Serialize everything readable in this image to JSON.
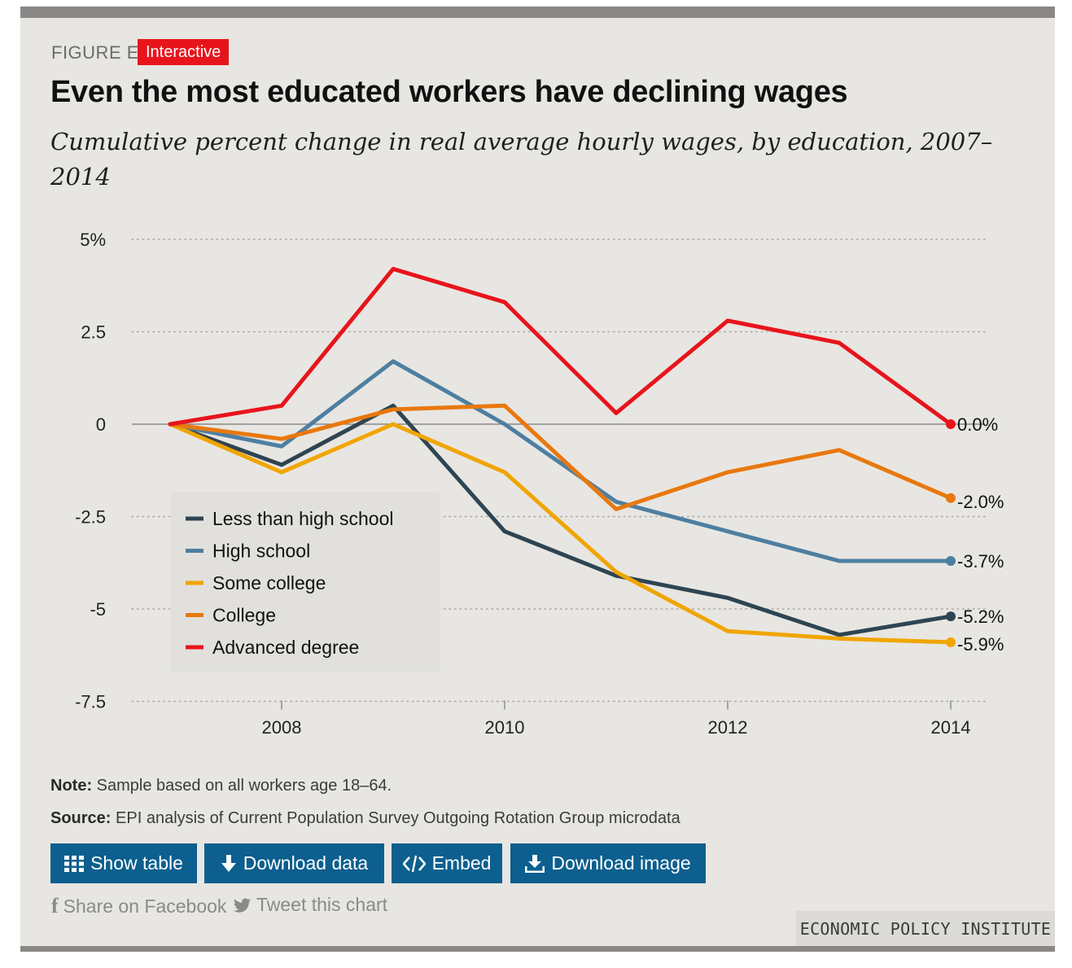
{
  "header": {
    "figure_label": "FIGURE E",
    "badge": "Interactive",
    "title": "Even the most educated workers have declining wages",
    "subtitle": "Cumulative percent change in real average hourly wages, by education, 2007–2014"
  },
  "footer": {
    "note_label": "Note:",
    "note_text": " Sample based on all workers age 18–64.",
    "source_label": "Source:",
    "source_text": " EPI analysis of Current Population Survey Outgoing Rotation Group microdata",
    "buttons": {
      "show_table": "Show table",
      "download_data": "Download data",
      "embed": "Embed",
      "download_image": "Download image"
    },
    "share_facebook": "Share on Facebook",
    "tweet": "Tweet this chart",
    "brand": "ECONOMIC POLICY INSTITUTE"
  },
  "icons": {
    "show_table": "grid-icon",
    "download_data": "download-arrow-icon",
    "embed": "code-icon",
    "download_image": "download-tray-icon",
    "facebook": "facebook-icon",
    "twitter": "twitter-icon"
  },
  "chart_data": {
    "type": "line",
    "x": [
      2007,
      2008,
      2009,
      2010,
      2011,
      2012,
      2013,
      2014
    ],
    "x_tick_labels": [
      "2008",
      "2010",
      "2012",
      "2014"
    ],
    "x_ticks": [
      2008,
      2010,
      2012,
      2014
    ],
    "y_tick_labels": [
      "5%",
      "2.5",
      "0",
      "-2.5",
      "-5",
      "-7.5"
    ],
    "y_ticks": [
      5,
      2.5,
      0,
      -2.5,
      -5,
      -7.5
    ],
    "ylim": [
      -7.5,
      5
    ],
    "xlim": [
      2006.2,
      2014.3
    ],
    "grid": "horizontal dotted",
    "legend_position": "middle-left",
    "series": [
      {
        "name": "Less than high school",
        "color": "#2e4452",
        "values": [
          0,
          -1.1,
          0.5,
          -2.9,
          -4.1,
          -4.7,
          -5.7,
          -5.2
        ],
        "end_label": "-5.2%"
      },
      {
        "name": "High school",
        "color": "#4d7fa1",
        "values": [
          0,
          -0.6,
          1.7,
          0,
          -2.1,
          -2.9,
          -3.7,
          -3.7
        ],
        "end_label": "-3.7%"
      },
      {
        "name": "Some college",
        "color": "#f0a500",
        "values": [
          0,
          -1.3,
          0,
          -1.3,
          -4.0,
          -5.6,
          -5.8,
          -5.9
        ],
        "end_label": "-5.9%"
      },
      {
        "name": "College",
        "color": "#e8780f",
        "values": [
          0,
          -0.4,
          0.4,
          0.5,
          -2.3,
          -1.3,
          -0.7,
          -2.0
        ],
        "end_label": "-2.0%"
      },
      {
        "name": "Advanced degree",
        "color": "#e8141c",
        "values": [
          0,
          0.5,
          4.2,
          3.3,
          0.3,
          2.8,
          2.2,
          0.0
        ],
        "end_label": "0.0%"
      }
    ]
  }
}
